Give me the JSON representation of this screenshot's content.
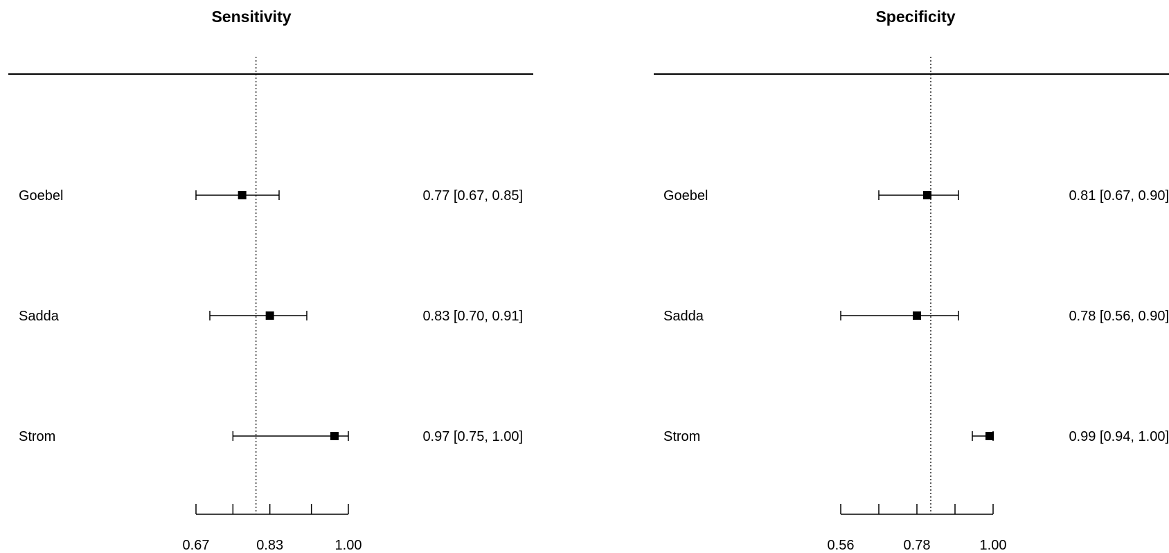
{
  "chart_data": [
    {
      "type": "forest",
      "title": "Sensitivity",
      "studies": [
        {
          "name": "Goebel",
          "estimate": 0.77,
          "lower": 0.67,
          "upper": 0.85,
          "label": "0.77 [0.67, 0.85]"
        },
        {
          "name": "Sadda",
          "estimate": 0.83,
          "lower": 0.7,
          "upper": 0.91,
          "label": "0.83 [0.70, 0.91]"
        },
        {
          "name": "Strom",
          "estimate": 0.97,
          "lower": 0.75,
          "upper": 1.0,
          "label": "0.97 [0.75, 1.00]"
        }
      ],
      "reference_line": 0.8,
      "xlim": [
        0.67,
        1.0
      ],
      "xticks": [
        0.67,
        0.75,
        0.83,
        0.92,
        1.0
      ],
      "xtick_labels": [
        "0.67",
        "",
        "0.83",
        "",
        "1.00"
      ]
    },
    {
      "type": "forest",
      "title": "Specificity",
      "studies": [
        {
          "name": "Goebel",
          "estimate": 0.81,
          "lower": 0.67,
          "upper": 0.9,
          "label": "0.81 [0.67, 0.90]"
        },
        {
          "name": "Sadda",
          "estimate": 0.78,
          "lower": 0.56,
          "upper": 0.9,
          "label": "0.78 [0.56, 0.90]"
        },
        {
          "name": "Strom",
          "estimate": 0.99,
          "lower": 0.94,
          "upper": 1.0,
          "label": "0.99 [0.94, 1.00]"
        }
      ],
      "reference_line": 0.82,
      "xlim": [
        0.56,
        1.0
      ],
      "xticks": [
        0.56,
        0.67,
        0.78,
        0.89,
        1.0
      ],
      "xtick_labels": [
        "0.56",
        "",
        "0.78",
        "",
        "1.00"
      ]
    }
  ]
}
